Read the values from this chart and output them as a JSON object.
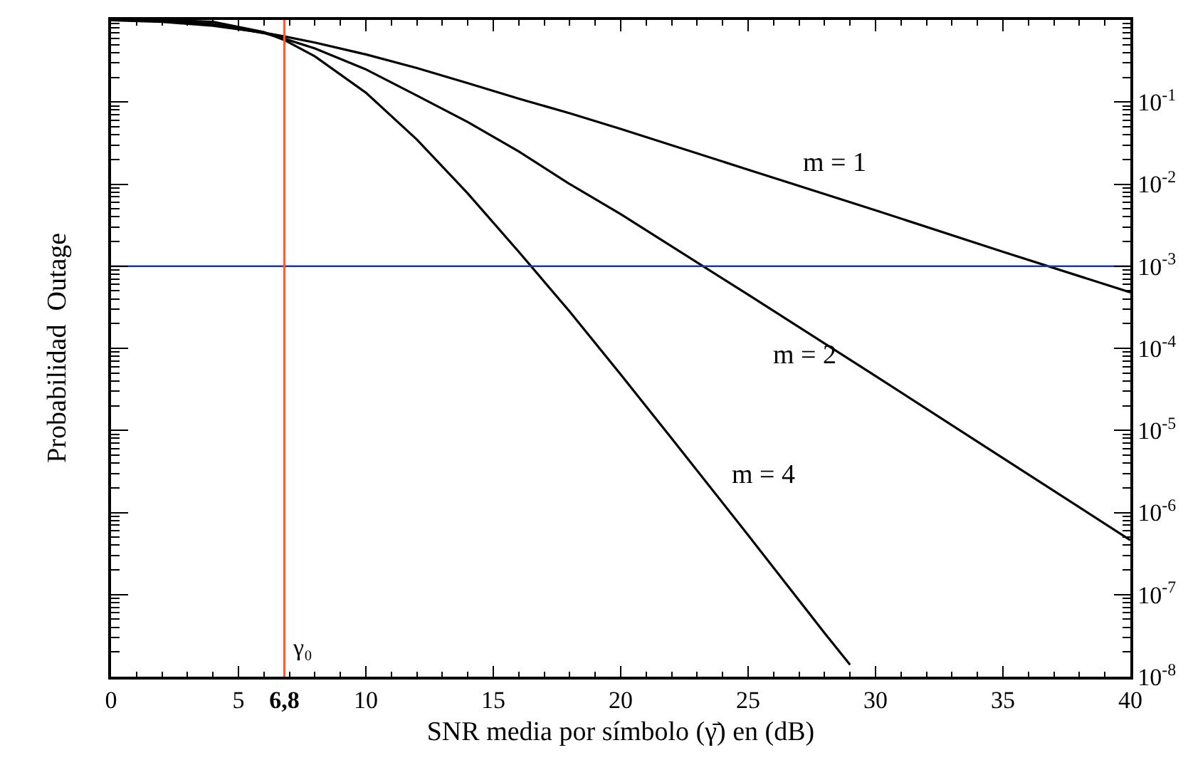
{
  "chart_data": {
    "type": "line",
    "xlabel": "SNR media por símbolo (γ̄) en (dB)",
    "ylabel": "Probabilidad  Outage",
    "x": [
      0,
      2,
      4,
      6,
      6.8,
      8,
      10,
      12,
      14,
      16,
      18,
      20,
      25,
      30,
      35,
      40
    ],
    "series": [
      {
        "color": "#000000",
        "values": [
          0.99,
          0.95,
          0.85,
          0.7,
          0.63,
          0.53,
          0.38,
          0.26,
          0.17,
          0.11,
          0.073,
          0.047,
          0.015,
          0.0048,
          0.0015,
          0.00048
        ]
      },
      {
        "color": "#000000",
        "values": [
          1.0,
          0.98,
          0.89,
          0.69,
          0.59,
          0.45,
          0.25,
          0.12,
          0.057,
          0.025,
          0.01,
          0.0043,
          0.00045,
          4.6e-05,
          4.6e-06,
          4.6e-07
        ]
      },
      {
        "color": "#000000",
        "x": [
          0,
          2,
          4,
          6,
          6.8,
          8,
          10,
          12,
          14,
          16,
          18,
          20,
          22,
          25,
          28,
          29
        ],
        "values": [
          1.0,
          1.0,
          0.95,
          0.71,
          0.57,
          0.36,
          0.13,
          0.035,
          0.0077,
          0.0015,
          0.00028,
          4.8e-05,
          8e-06,
          5.3e-07,
          3.4e-08,
          1.4e-08
        ]
      }
    ],
    "log": "y",
    "xlim": [
      0,
      40
    ],
    "xticks": [
      0,
      5,
      {
        "value": 6.8,
        "label": "6,8"
      },
      10,
      15,
      20,
      25,
      30,
      35,
      40
    ],
    "ylim": [
      1e-08,
      1
    ],
    "yticks": [
      {
        "value": 0.1,
        "label": "10$^{-1}$"
      },
      {
        "value": 0.01,
        "label": "10$^{-2}$"
      },
      {
        "value": 0.001,
        "label": "10$^{-3}$"
      },
      {
        "value": 0.0001,
        "label": "10$^{-4}$"
      },
      {
        "value": 1e-05,
        "label": "10$^{-5}$"
      },
      {
        "value": 1e-06,
        "label": "10$^{-6}$"
      },
      {
        "value": 1e-07,
        "label": "10$^{-7}$"
      },
      {
        "value": 1e-08,
        "label": "10$^{-8}$"
      }
    ],
    "ref_lines": [
      {
        "axis": "x",
        "value": 6.8,
        "label": "γ₀",
        "color": "#ff5a36"
      },
      {
        "axis": "y",
        "value": 0.001,
        "color": "#1a3aa0"
      }
    ],
    "annotations": [
      "m = 1",
      "m = 2",
      "m = 4"
    ],
    "marker": "none",
    "line_style": "solid"
  }
}
